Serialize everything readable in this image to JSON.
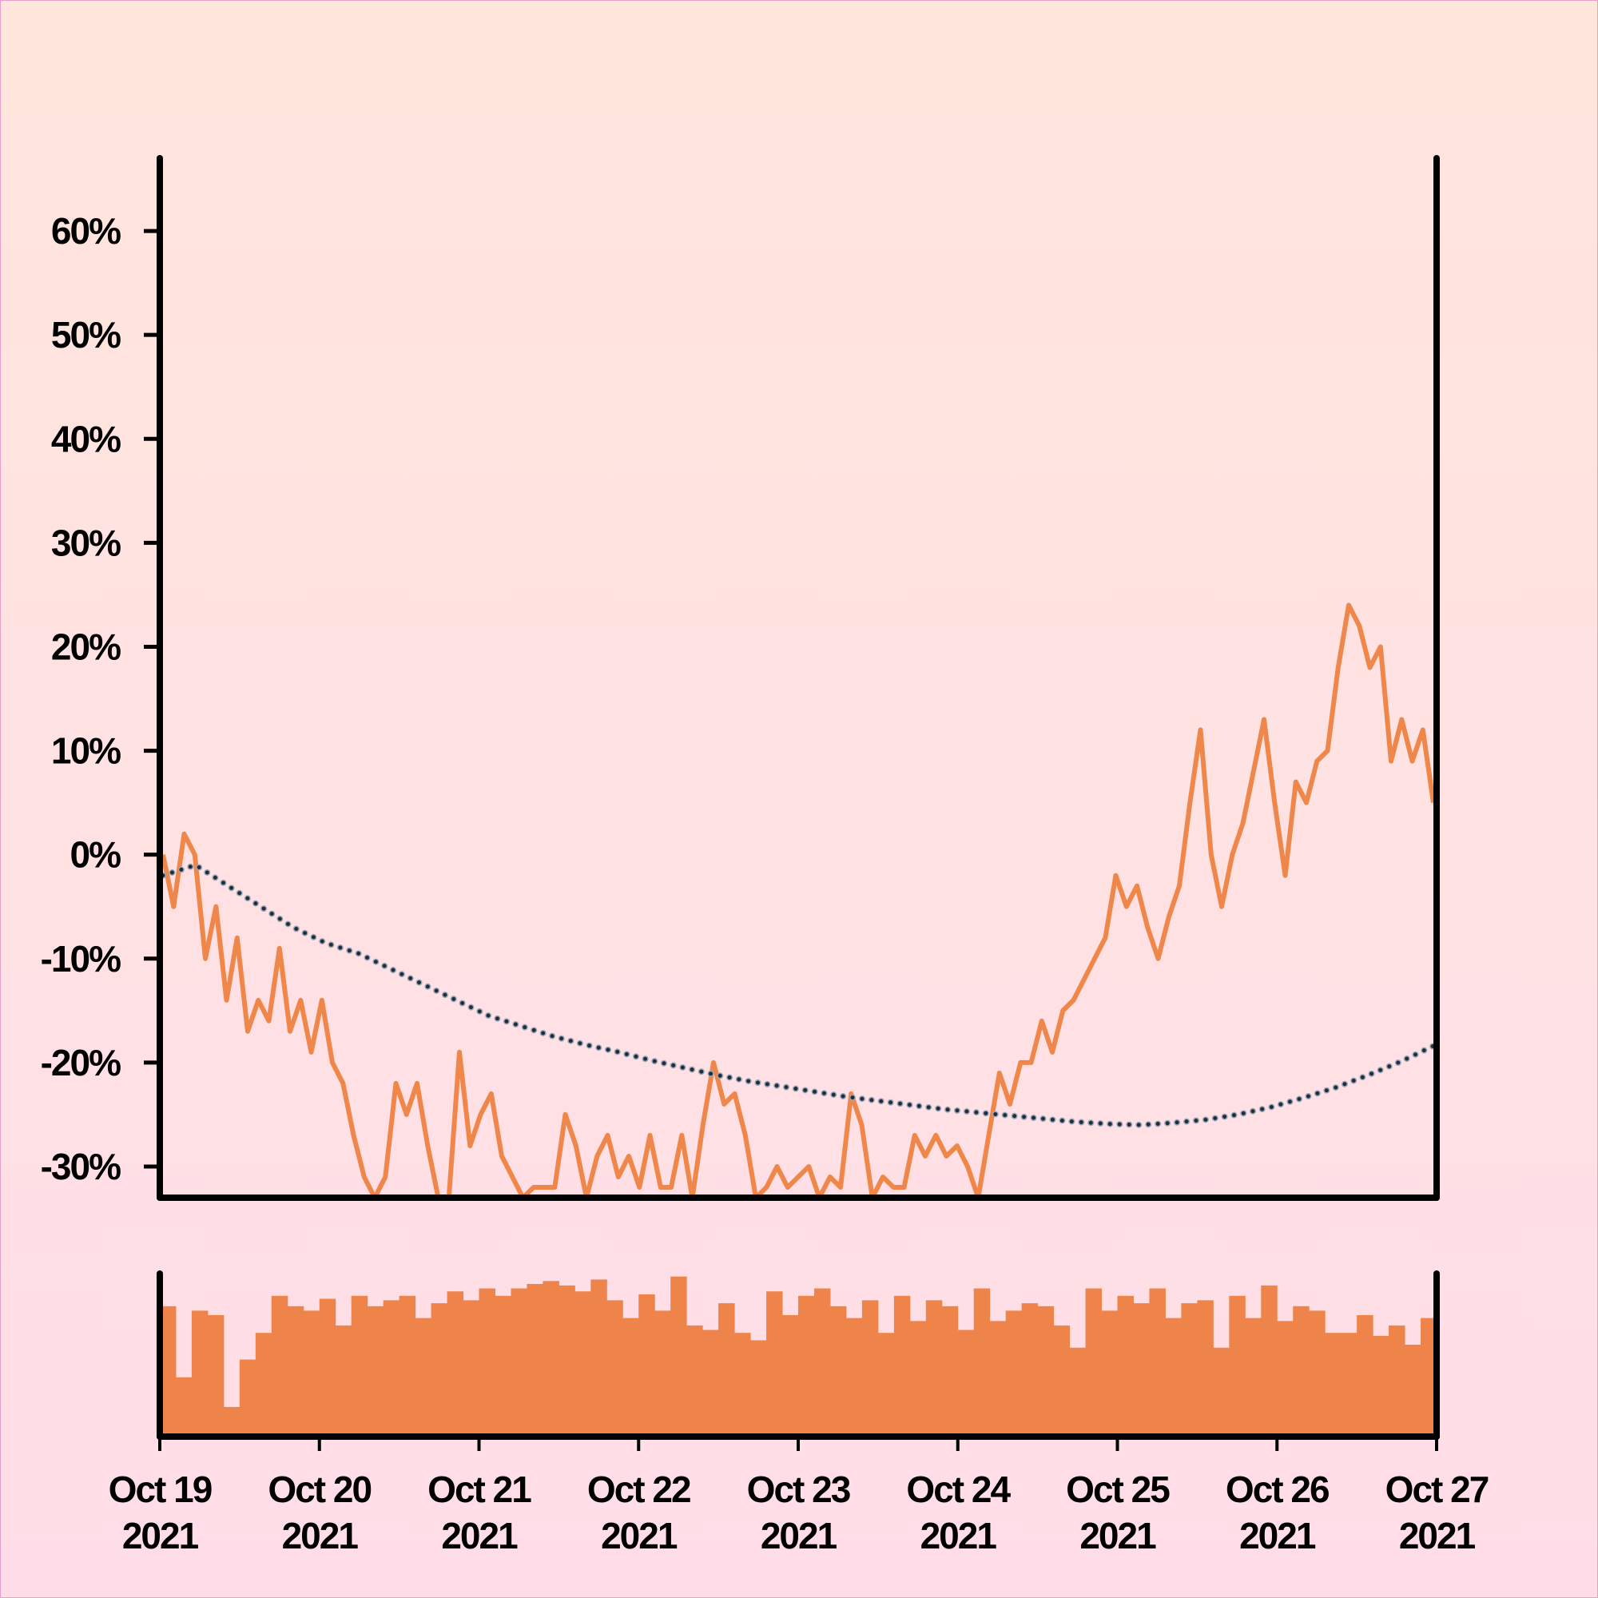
{
  "chart_data": [
    {
      "type": "line",
      "xlim": [
        "2021-10-19",
        "2021-10-27"
      ],
      "ylim": [
        -33,
        67
      ],
      "yticks": [
        {
          "value": -30,
          "label": "-30%"
        },
        {
          "value": -20,
          "label": "-20%"
        },
        {
          "value": -10,
          "label": "-10%"
        },
        {
          "value": 0,
          "label": "0%"
        },
        {
          "value": 10,
          "label": "10%"
        },
        {
          "value": 20,
          "label": "20%"
        },
        {
          "value": 30,
          "label": "30%"
        },
        {
          "value": 40,
          "label": "40%"
        },
        {
          "value": 50,
          "label": "50%"
        },
        {
          "value": 60,
          "label": "60%"
        }
      ],
      "series": [
        {
          "color": "#f0874a",
          "style": "solid",
          "values": [
            0,
            -5,
            2,
            0,
            -10,
            -5,
            -14,
            -8,
            -17,
            -14,
            -16,
            -9,
            -17,
            -14,
            -19,
            -14,
            -20,
            -22,
            -27,
            -31,
            -33,
            -31,
            -22,
            -25,
            -22,
            -28,
            -33,
            -33,
            -19,
            -28,
            -25,
            -23,
            -29,
            -31,
            -33,
            -32,
            -32,
            -32,
            -25,
            -28,
            -33,
            -29,
            -27,
            -31,
            -29,
            -32,
            -27,
            -32,
            -32,
            -27,
            -33,
            -26,
            -20,
            -24,
            -23,
            -27,
            -33,
            -32,
            -30,
            -32,
            -31,
            -30,
            -33,
            -31,
            -32,
            -23,
            -26,
            -33,
            -31,
            -32,
            -32,
            -27,
            -29,
            -27,
            -29,
            -28,
            -30,
            -33,
            -27,
            -21,
            -24,
            -20,
            -20,
            -16,
            -19,
            -15,
            -14,
            -12,
            -10,
            -8,
            -2,
            -5,
            -3,
            -7,
            -10,
            -6,
            -3,
            5,
            12,
            0,
            -5,
            0,
            3,
            8,
            13,
            5,
            -2,
            7,
            5,
            9,
            10,
            18,
            24,
            22,
            18,
            20,
            9,
            13,
            9,
            12,
            5
          ]
        },
        {
          "color": "#1f2d3d",
          "style": "dotted",
          "values": [
            -2,
            -1,
            -3,
            -5,
            -7,
            -8.5,
            -9.5,
            -11,
            -12.5,
            -14,
            -15.5,
            -16.5,
            -17.5,
            -18.3,
            -19,
            -19.8,
            -20.5,
            -21.2,
            -21.8,
            -22.3,
            -22.8,
            -23.3,
            -23.7,
            -24.1,
            -24.5,
            -24.8,
            -25.1,
            -25.4,
            -25.7,
            -25.9,
            -26,
            -25.8,
            -25.5,
            -25,
            -24.3,
            -23.4,
            -22.4,
            -21.2,
            -19.9,
            -18.4
          ]
        }
      ]
    },
    {
      "type": "bar",
      "xlim": [
        "2021-10-19",
        "2021-10-27"
      ],
      "ylim": [
        0,
        110
      ],
      "color": "#ee844a",
      "values": [
        88,
        40,
        85,
        82,
        20,
        52,
        70,
        95,
        88,
        85,
        93,
        75,
        95,
        88,
        92,
        95,
        80,
        90,
        98,
        92,
        100,
        95,
        100,
        103,
        105,
        102,
        98,
        106,
        92,
        80,
        96,
        85,
        108,
        75,
        72,
        90,
        70,
        65,
        98,
        82,
        95,
        100,
        88,
        80,
        92,
        70,
        95,
        78,
        92,
        88,
        72,
        100,
        78,
        85,
        90,
        88,
        75,
        60,
        100,
        85,
        95,
        90,
        100,
        80,
        90,
        92,
        60,
        95,
        80,
        102,
        78,
        88,
        85,
        70,
        70,
        82,
        68,
        75,
        62,
        80
      ],
      "xticks": [
        {
          "value": "2021-10-19",
          "label": "Oct 19\n2021"
        },
        {
          "value": "2021-10-20",
          "label": "Oct 20\n2021"
        },
        {
          "value": "2021-10-21",
          "label": "Oct 21\n2021"
        },
        {
          "value": "2021-10-22",
          "label": "Oct 22\n2021"
        },
        {
          "value": "2021-10-23",
          "label": "Oct 23\n2021"
        },
        {
          "value": "2021-10-24",
          "label": "Oct 24\n2021"
        },
        {
          "value": "2021-10-25",
          "label": "Oct 25\n2021"
        },
        {
          "value": "2021-10-26",
          "label": "Oct 26\n2021"
        },
        {
          "value": "2021-10-27",
          "label": "Oct 27\n2021"
        }
      ]
    }
  ]
}
